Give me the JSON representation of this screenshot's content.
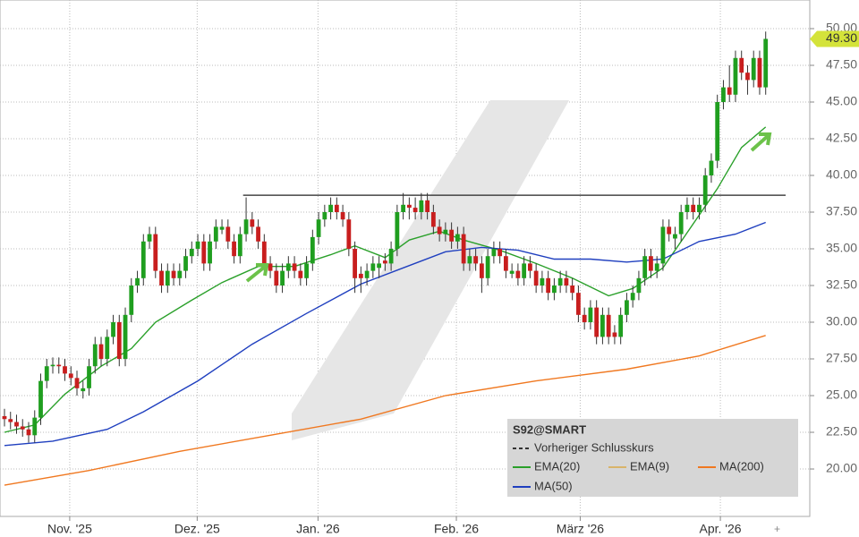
{
  "chart_data": {
    "type": "candlestick",
    "symbol": "S92@SMART",
    "up_color": "#1f9e1f",
    "down_color": "#c81e1e",
    "ylim": [
      16.77,
      51.95
    ],
    "yticks": [
      {
        "value": 20,
        "label": "20.00"
      },
      {
        "value": 22.5,
        "label": "22.50"
      },
      {
        "value": 25,
        "label": "25.00"
      },
      {
        "value": 27.5,
        "label": "27.50"
      },
      {
        "value": 30,
        "label": "30.00"
      },
      {
        "value": 32.5,
        "label": "32.50"
      },
      {
        "value": 35,
        "label": "35.00"
      },
      {
        "value": 37.5,
        "label": "37.50"
      },
      {
        "value": 40,
        "label": "40.00"
      },
      {
        "value": 42.5,
        "label": "42.50"
      },
      {
        "value": 45,
        "label": "45.00"
      },
      {
        "value": 47.5,
        "label": "47.50"
      },
      {
        "value": 50,
        "label": "50.00"
      }
    ],
    "xlim": [
      -0.74,
      133.3
    ],
    "xticks": [
      {
        "value": 10.8,
        "label": "Nov. '25"
      },
      {
        "value": 31.9,
        "label": "Dez. '25"
      },
      {
        "value": 51.9,
        "label": "Jan. '26"
      },
      {
        "value": 74.8,
        "label": "Feb. '26"
      },
      {
        "value": 95.3,
        "label": "März '26"
      },
      {
        "value": 118.5,
        "label": "Apr. '26"
      }
    ],
    "grid": true,
    "ohlc": [
      [
        23.6,
        24.1,
        22.9,
        23.4
      ],
      [
        23.4,
        23.9,
        22.7,
        23.2
      ],
      [
        23.2,
        23.7,
        22.4,
        22.9
      ],
      [
        22.9,
        23.4,
        22.2,
        22.7
      ],
      [
        22.7,
        23.2,
        21.8,
        22.3
      ],
      [
        22.3,
        24.0,
        21.8,
        23.5
      ],
      [
        23.5,
        26.5,
        23.0,
        26.0
      ],
      [
        26.0,
        27.5,
        25.5,
        27.0
      ],
      [
        27.0,
        27.6,
        26.5,
        27.1
      ],
      [
        27.1,
        27.6,
        26.5,
        27.0
      ],
      [
        27.0,
        27.5,
        26.0,
        26.5
      ],
      [
        26.5,
        27.0,
        25.7,
        26.2
      ],
      [
        26.2,
        26.7,
        25.0,
        25.5
      ],
      [
        25.3,
        26.0,
        24.8,
        25.5
      ],
      [
        25.5,
        27.5,
        25.0,
        27.0
      ],
      [
        27.0,
        29.0,
        26.5,
        28.5
      ],
      [
        28.5,
        29.0,
        27.0,
        27.5
      ],
      [
        27.5,
        29.5,
        27.0,
        29.0
      ],
      [
        29.0,
        30.5,
        28.5,
        30.0
      ],
      [
        30.0,
        30.5,
        27.0,
        27.5
      ],
      [
        27.5,
        31.0,
        27.0,
        30.5
      ],
      [
        30.5,
        33.0,
        30.0,
        32.5
      ],
      [
        32.5,
        33.5,
        32.0,
        33.0
      ],
      [
        33.0,
        36.0,
        32.5,
        35.5
      ],
      [
        35.5,
        36.5,
        35.0,
        36.0
      ],
      [
        36.0,
        36.5,
        33.0,
        33.5
      ],
      [
        33.5,
        34.0,
        32.0,
        32.5
      ],
      [
        32.5,
        34.0,
        32.0,
        33.5
      ],
      [
        33.5,
        34.0,
        32.5,
        33.0
      ],
      [
        33.0,
        34.0,
        32.5,
        33.5
      ],
      [
        33.5,
        35.0,
        33.0,
        34.5
      ],
      [
        34.5,
        35.5,
        34.0,
        35.0
      ],
      [
        35.0,
        36.0,
        34.5,
        35.5
      ],
      [
        35.5,
        36.0,
        33.5,
        34.0
      ],
      [
        34.0,
        36.0,
        33.5,
        35.5
      ],
      [
        35.5,
        37.0,
        35.0,
        36.5
      ],
      [
        36.3,
        37.0,
        36.0,
        36.5
      ],
      [
        36.5,
        37.0,
        35.0,
        35.5
      ],
      [
        35.5,
        36.0,
        34.0,
        34.5
      ],
      [
        34.5,
        36.5,
        34.0,
        36.0
      ],
      [
        36.0,
        38.5,
        35.5,
        37.0
      ],
      [
        37.0,
        37.5,
        36.0,
        36.5
      ],
      [
        36.5,
        37.0,
        35.0,
        35.5
      ],
      [
        35.5,
        36.0,
        33.5,
        34.0
      ],
      [
        34.0,
        34.5,
        33.0,
        33.5
      ],
      [
        33.5,
        34.0,
        32.0,
        32.5
      ],
      [
        32.5,
        34.0,
        32.0,
        33.5
      ],
      [
        33.5,
        34.5,
        33.0,
        34.0
      ],
      [
        34.0,
        34.5,
        33.0,
        33.5
      ],
      [
        33.5,
        34.0,
        32.5,
        33.0
      ],
      [
        33.0,
        34.5,
        32.5,
        34.0
      ],
      [
        34.0,
        36.3,
        33.5,
        35.8
      ],
      [
        35.8,
        37.5,
        35.3,
        37.0
      ],
      [
        37.0,
        38.0,
        36.5,
        37.5
      ],
      [
        37.5,
        38.5,
        37.0,
        38.0
      ],
      [
        38.0,
        38.5,
        37.0,
        37.5
      ],
      [
        37.5,
        38.0,
        36.5,
        37.0
      ],
      [
        37.0,
        37.5,
        34.5,
        35.0
      ],
      [
        35.0,
        35.5,
        32.0,
        33.0
      ],
      [
        33.3,
        33.8,
        32.0,
        33.0
      ],
      [
        33.0,
        34.0,
        32.5,
        33.5
      ],
      [
        33.5,
        34.5,
        33.0,
        34.0
      ],
      [
        33.7,
        34.5,
        33.0,
        34.0
      ],
      [
        34.2,
        34.7,
        33.5,
        34.0
      ],
      [
        34.0,
        35.5,
        33.5,
        35.0
      ],
      [
        35.0,
        38.0,
        34.5,
        37.5
      ],
      [
        37.5,
        38.8,
        37.0,
        38.0
      ],
      [
        38.0,
        38.5,
        37.0,
        37.8
      ],
      [
        37.8,
        38.5,
        37.0,
        37.5
      ],
      [
        37.5,
        38.8,
        37.0,
        38.3
      ],
      [
        38.3,
        38.8,
        37.0,
        37.5
      ],
      [
        37.5,
        38.0,
        36.0,
        36.5
      ],
      [
        36.5,
        37.0,
        35.5,
        36.0
      ],
      [
        36.0,
        36.8,
        35.5,
        36.3
      ],
      [
        36.3,
        36.8,
        35.0,
        35.5
      ],
      [
        35.5,
        36.5,
        35.0,
        36.0
      ],
      [
        36.0,
        36.5,
        33.5,
        34.0
      ],
      [
        34.0,
        35.0,
        33.5,
        34.5
      ],
      [
        34.5,
        35.0,
        33.5,
        34.0
      ],
      [
        34.0,
        34.5,
        32.0,
        33.0
      ],
      [
        33.0,
        35.0,
        32.5,
        34.5
      ],
      [
        34.5,
        35.5,
        34.0,
        35.0
      ],
      [
        35.0,
        35.5,
        34.0,
        34.5
      ],
      [
        34.5,
        35.0,
        33.0,
        33.5
      ],
      [
        33.3,
        34.0,
        33.0,
        33.5
      ],
      [
        33.5,
        34.0,
        32.5,
        33.0
      ],
      [
        33.0,
        34.5,
        32.5,
        34.0
      ],
      [
        34.0,
        34.5,
        33.0,
        33.5
      ],
      [
        33.5,
        34.0,
        32.0,
        32.5
      ],
      [
        32.5,
        33.5,
        32.0,
        33.0
      ],
      [
        33.0,
        33.5,
        31.5,
        32.0
      ],
      [
        32.0,
        33.0,
        31.5,
        32.5
      ],
      [
        32.5,
        33.5,
        32.0,
        33.0
      ],
      [
        33.0,
        33.5,
        32.0,
        32.5
      ],
      [
        32.5,
        33.0,
        31.5,
        32.0
      ],
      [
        32.0,
        32.5,
        30.0,
        30.5
      ],
      [
        30.5,
        31.0,
        29.5,
        30.0
      ],
      [
        30.0,
        31.5,
        29.5,
        31.0
      ],
      [
        31.0,
        31.5,
        28.5,
        29.0
      ],
      [
        29.0,
        31.0,
        28.5,
        30.5
      ],
      [
        30.5,
        31.0,
        28.5,
        29.0
      ],
      [
        29.3,
        29.8,
        28.5,
        29.0
      ],
      [
        29.0,
        31.0,
        28.5,
        30.5
      ],
      [
        30.5,
        32.0,
        30.0,
        31.5
      ],
      [
        31.5,
        32.5,
        31.0,
        32.0
      ],
      [
        32.0,
        33.5,
        31.5,
        33.0
      ],
      [
        33.0,
        35.0,
        32.5,
        34.5
      ],
      [
        34.5,
        35.0,
        33.0,
        33.5
      ],
      [
        33.5,
        34.5,
        33.0,
        34.0
      ],
      [
        34.0,
        37.0,
        33.5,
        36.5
      ],
      [
        36.5,
        37.0,
        35.5,
        36.0
      ],
      [
        35.7,
        36.5,
        35.0,
        36.0
      ],
      [
        36.0,
        38.0,
        35.5,
        37.5
      ],
      [
        37.5,
        38.5,
        37.0,
        38.0
      ],
      [
        38.0,
        38.5,
        37.0,
        37.5
      ],
      [
        37.5,
        38.5,
        37.0,
        38.0
      ],
      [
        38.0,
        40.5,
        37.5,
        40.0
      ],
      [
        40.0,
        41.5,
        39.5,
        41.0
      ],
      [
        41.0,
        45.5,
        40.5,
        45.0
      ],
      [
        45.0,
        46.5,
        44.5,
        46.0
      ],
      [
        46.0,
        47.5,
        45.0,
        45.5
      ],
      [
        45.5,
        48.5,
        45.0,
        48.0
      ],
      [
        48.0,
        48.5,
        46.5,
        47.0
      ],
      [
        47.0,
        47.5,
        45.5,
        46.5
      ],
      [
        46.5,
        48.5,
        46.0,
        48.0
      ],
      [
        48.0,
        48.5,
        45.5,
        46.0
      ],
      [
        46.0,
        49.8,
        45.5,
        49.3
      ]
    ],
    "series": [
      {
        "name": "EMA(20)",
        "color": "#2aa02a",
        "x": [
          0,
          5,
          10,
          16,
          21,
          25,
          31,
          36,
          42,
          48,
          54,
          58,
          63,
          67,
          72,
          76,
          82,
          88,
          94,
          100,
          104,
          109,
          113,
          118,
          122,
          126
        ],
        "values": [
          22.5,
          23.0,
          25.1,
          27.0,
          28.2,
          30.0,
          31.5,
          32.7,
          33.8,
          33.8,
          34.6,
          35.2,
          34.4,
          35.6,
          36.2,
          35.6,
          34.9,
          34.0,
          33.0,
          31.8,
          32.3,
          33.7,
          36.1,
          39.1,
          41.9,
          43.3
        ]
      },
      {
        "name": "EMA(9)",
        "color": "#d9b46a",
        "x": [],
        "values": []
      },
      {
        "name": "MA(200)",
        "color": "#f07820",
        "x": [
          0,
          14,
          29,
          44,
          59,
          73,
          88,
          103,
          115,
          126
        ],
        "values": [
          18.9,
          19.9,
          21.2,
          22.3,
          23.4,
          25.0,
          26.0,
          26.8,
          27.7,
          29.1
        ]
      },
      {
        "name": "MA(50)",
        "color": "#1f3fbf",
        "x": [
          0,
          8,
          17,
          23,
          32,
          41,
          50,
          59,
          66,
          73,
          79,
          85,
          91,
          97,
          103,
          109,
          115,
          121,
          126
        ],
        "values": [
          21.6,
          21.9,
          22.7,
          23.9,
          26.0,
          28.5,
          30.6,
          32.6,
          33.7,
          34.8,
          35.1,
          34.9,
          34.3,
          34.3,
          34.1,
          34.3,
          35.5,
          36.0,
          36.8
        ]
      }
    ],
    "previous_close": {
      "name": "Vorheriger Schlusskurs",
      "value": 38.65,
      "x": [
        39.5,
        129.3
      ]
    },
    "last_price": {
      "value": 49.3,
      "label": "49.30"
    }
  }
}
